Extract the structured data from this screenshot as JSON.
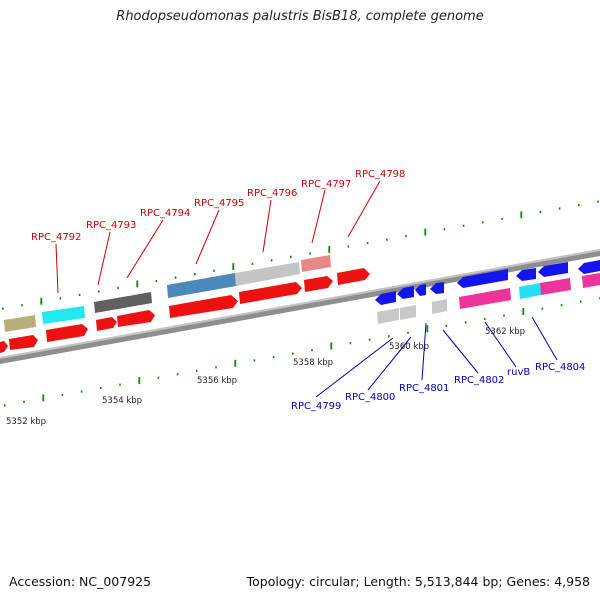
{
  "title": "Rhodopseudomonas palustris BisB18, complete genome",
  "footer": {
    "accession": "Accession: NC_007925",
    "summary": "Topology: circular; Length: 5,513,844 bp; Genes: 4,958"
  },
  "colors": {
    "backbone": "#909090",
    "tick": "#118811",
    "forward_label": "#cc0000",
    "reverse_label": "#0000bb",
    "scale_label": "#222222"
  },
  "scale_labels": [
    "5352 kbp",
    "5354 kbp",
    "5356 kbp",
    "5358 kbp",
    "5360 kbp",
    "5362 kbp"
  ],
  "gene_labels": {
    "forward": [
      "RPC_4792",
      "RPC_4793",
      "RPC_4794",
      "RPC_4795",
      "RPC_4796",
      "RPC_4797",
      "RPC_4798"
    ],
    "reverse": [
      "RPC_4799",
      "RPC_4800",
      "RPC_4801",
      "RPC_4802",
      "ruvB",
      "RPC_4804"
    ]
  }
}
